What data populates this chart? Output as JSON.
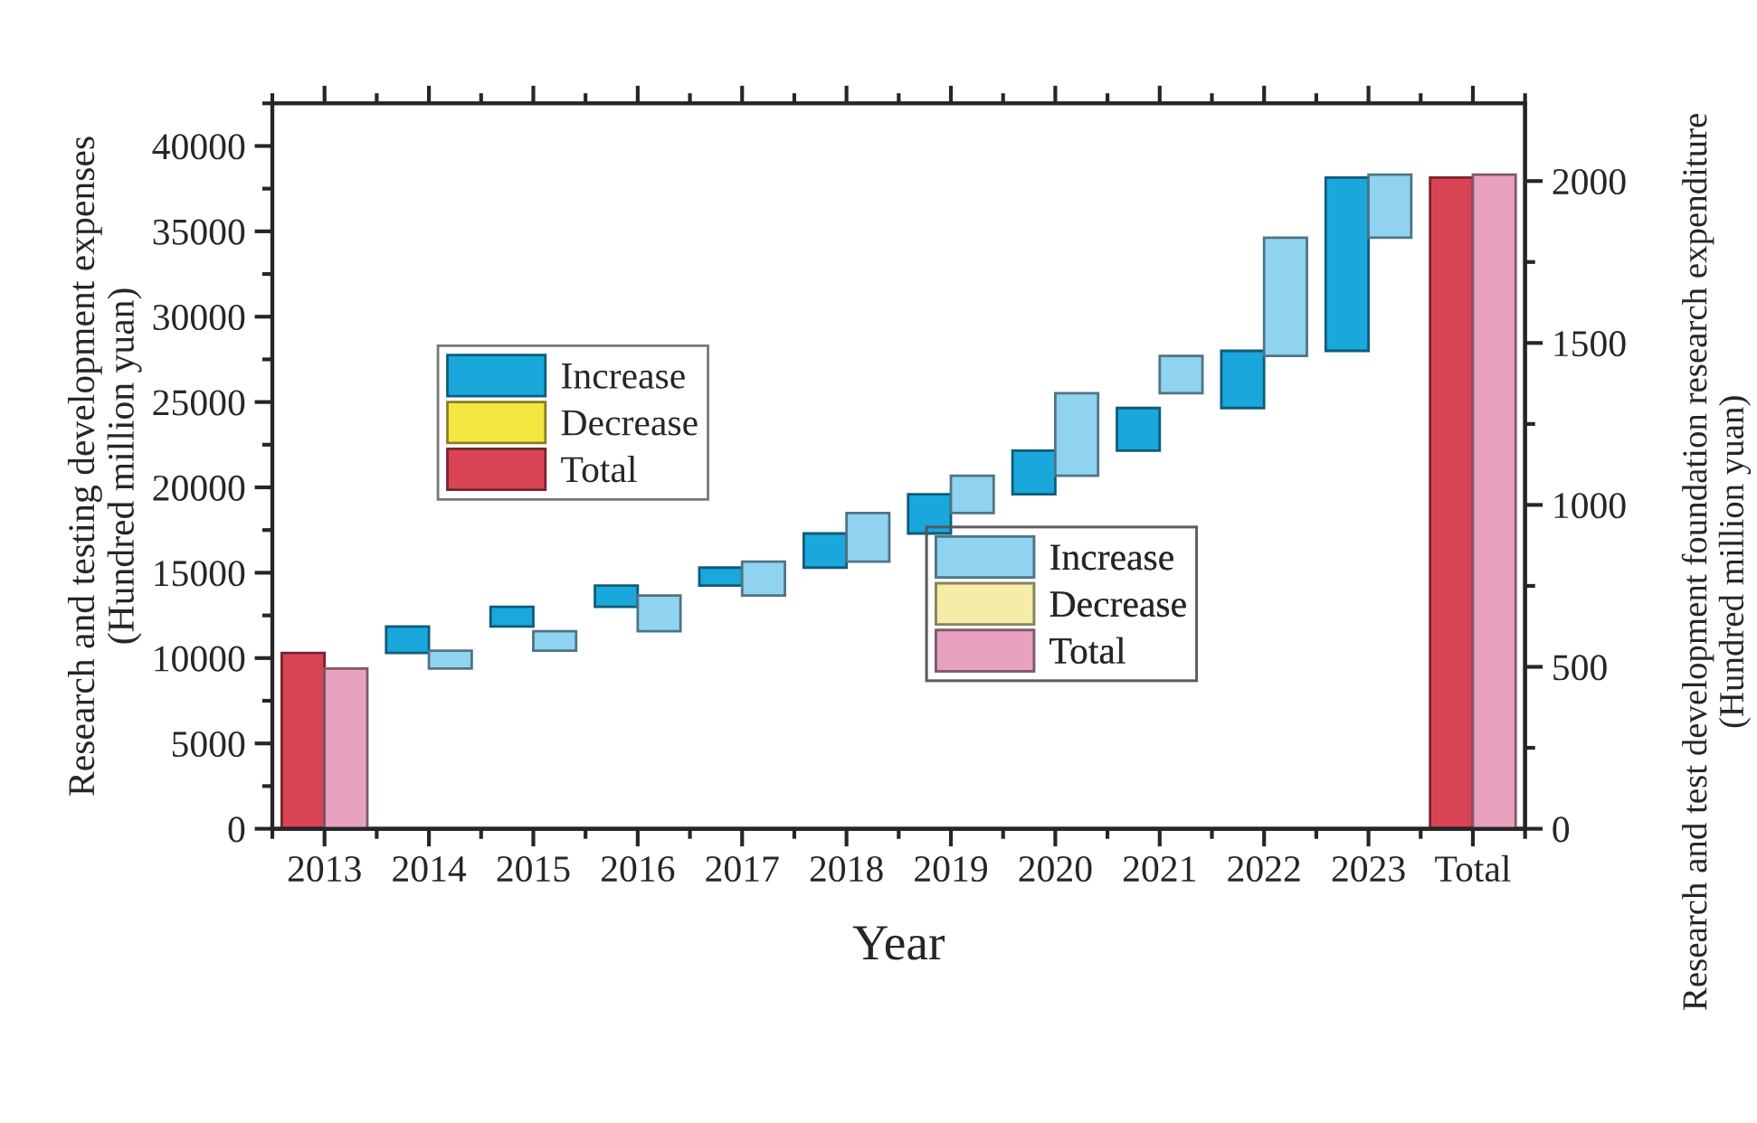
{
  "chart_data": {
    "type": "bar",
    "xlabel": "Year",
    "ylabel": "Research and testing development expenses\n(Hundred million yuan)",
    "y2label": "Research and test development foundation research expenditure\n(Hundred million yuan)",
    "categories": [
      "2013",
      "2014",
      "2015",
      "2016",
      "2017",
      "2018",
      "2019",
      "2020",
      "2021",
      "2022",
      "2023",
      "Total"
    ],
    "series": [
      {
        "name": "Increase",
        "color": "#1aa7dc",
        "axis": "y",
        "values": [
          null,
          1550,
          1150,
          1250,
          1050,
          2000,
          2300,
          2550,
          2500,
          3350,
          10150,
          null
        ],
        "base": [
          null,
          10300,
          11850,
          13000,
          14250,
          15300,
          17300,
          19600,
          22150,
          24650,
          28000,
          null
        ]
      },
      {
        "name": "Decrease",
        "color": "#f5e642",
        "axis": "y",
        "values": [
          null,
          null,
          null,
          null,
          null,
          null,
          null,
          null,
          null,
          null,
          null,
          null
        ]
      },
      {
        "name": "Total",
        "color": "#d94454",
        "axis": "y",
        "values": [
          10300,
          null,
          null,
          null,
          null,
          null,
          null,
          null,
          null,
          null,
          null,
          38150
        ]
      },
      {
        "name": "Increase",
        "color": "#8fd3f0",
        "axis": "y2",
        "values": [
          null,
          55,
          60,
          110,
          105,
          150,
          115,
          255,
          115,
          365,
          195,
          null
        ],
        "base": [
          null,
          495,
          550,
          610,
          720,
          825,
          975,
          1090,
          1345,
          1460,
          1825,
          null
        ]
      },
      {
        "name": "Decrease",
        "color": "#f5eca8",
        "axis": "y2",
        "values": [
          null,
          null,
          null,
          null,
          null,
          null,
          null,
          null,
          null,
          null,
          null,
          null
        ]
      },
      {
        "name": "Total",
        "color": "#e8a2c0",
        "axis": "y2",
        "values": [
          495,
          null,
          null,
          null,
          null,
          null,
          null,
          null,
          null,
          null,
          null,
          2020
        ]
      }
    ],
    "ylim": [
      0,
      42500
    ],
    "yticks": [
      0,
      5000,
      10000,
      15000,
      20000,
      25000,
      30000,
      35000,
      40000
    ],
    "y2lim": [
      0,
      2240
    ],
    "y2ticks": [
      0,
      500,
      1000,
      1500,
      2000
    ],
    "grid": false,
    "legend": "center"
  }
}
